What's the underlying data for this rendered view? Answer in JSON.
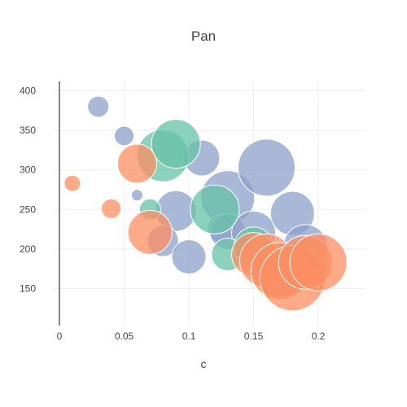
{
  "chart_data": {
    "type": "scatter",
    "subtype": "bubble",
    "title": "Pan",
    "xlabel": "c",
    "ylabel": "",
    "xlim": [
      -0.005,
      0.237
    ],
    "ylim": [
      103,
      412
    ],
    "x_ticks": [
      0,
      0.05,
      0.1,
      0.15,
      0.2
    ],
    "x_tick_labels": [
      "0",
      "0.05",
      "0.1",
      "0.15",
      "0.2"
    ],
    "y_ticks": [
      150,
      200,
      250,
      300,
      350,
      400
    ],
    "y_tick_labels": [
      "150",
      "200",
      "250",
      "300",
      "350",
      "400"
    ],
    "grid": true,
    "legend": "none",
    "series": [
      {
        "color": "#8da0cb",
        "points": [
          {
            "x": 0.03,
            "y": 380,
            "size": 13
          },
          {
            "x": 0.05,
            "y": 343,
            "size": 12
          },
          {
            "x": 0.06,
            "y": 268,
            "size": 7
          },
          {
            "x": 0.11,
            "y": 315,
            "size": 22
          },
          {
            "x": 0.09,
            "y": 248,
            "size": 25
          },
          {
            "x": 0.08,
            "y": 210,
            "size": 19
          },
          {
            "x": 0.1,
            "y": 190,
            "size": 21
          },
          {
            "x": 0.13,
            "y": 265,
            "size": 33
          },
          {
            "x": 0.125,
            "y": 226,
            "size": 17
          },
          {
            "x": 0.13,
            "y": 222,
            "size": 22
          },
          {
            "x": 0.15,
            "y": 220,
            "size": 27
          },
          {
            "x": 0.16,
            "y": 303,
            "size": 35
          },
          {
            "x": 0.18,
            "y": 245,
            "size": 27
          },
          {
            "x": 0.19,
            "y": 203,
            "size": 27
          },
          {
            "x": 0.17,
            "y": 170,
            "size": 30
          }
        ]
      },
      {
        "color": "#66c2a5",
        "points": [
          {
            "x": 0.08,
            "y": 318,
            "size": 32
          },
          {
            "x": 0.09,
            "y": 333,
            "size": 30
          },
          {
            "x": 0.07,
            "y": 250,
            "size": 13
          },
          {
            "x": 0.12,
            "y": 250,
            "size": 30
          },
          {
            "x": 0.13,
            "y": 193,
            "size": 20
          },
          {
            "x": 0.15,
            "y": 203,
            "size": 24
          },
          {
            "x": 0.19,
            "y": 175,
            "size": 25
          }
        ]
      },
      {
        "color": "#fc8d62",
        "points": [
          {
            "x": 0.01,
            "y": 283,
            "size": 10
          },
          {
            "x": 0.04,
            "y": 251,
            "size": 12
          },
          {
            "x": 0.06,
            "y": 308,
            "size": 24
          },
          {
            "x": 0.07,
            "y": 221,
            "size": 27
          },
          {
            "x": 0.15,
            "y": 193,
            "size": 27
          },
          {
            "x": 0.16,
            "y": 185,
            "size": 33
          },
          {
            "x": 0.17,
            "y": 172,
            "size": 35
          },
          {
            "x": 0.18,
            "y": 163,
            "size": 40
          },
          {
            "x": 0.19,
            "y": 183,
            "size": 33
          },
          {
            "x": 0.2,
            "y": 183,
            "size": 35
          }
        ]
      }
    ]
  }
}
